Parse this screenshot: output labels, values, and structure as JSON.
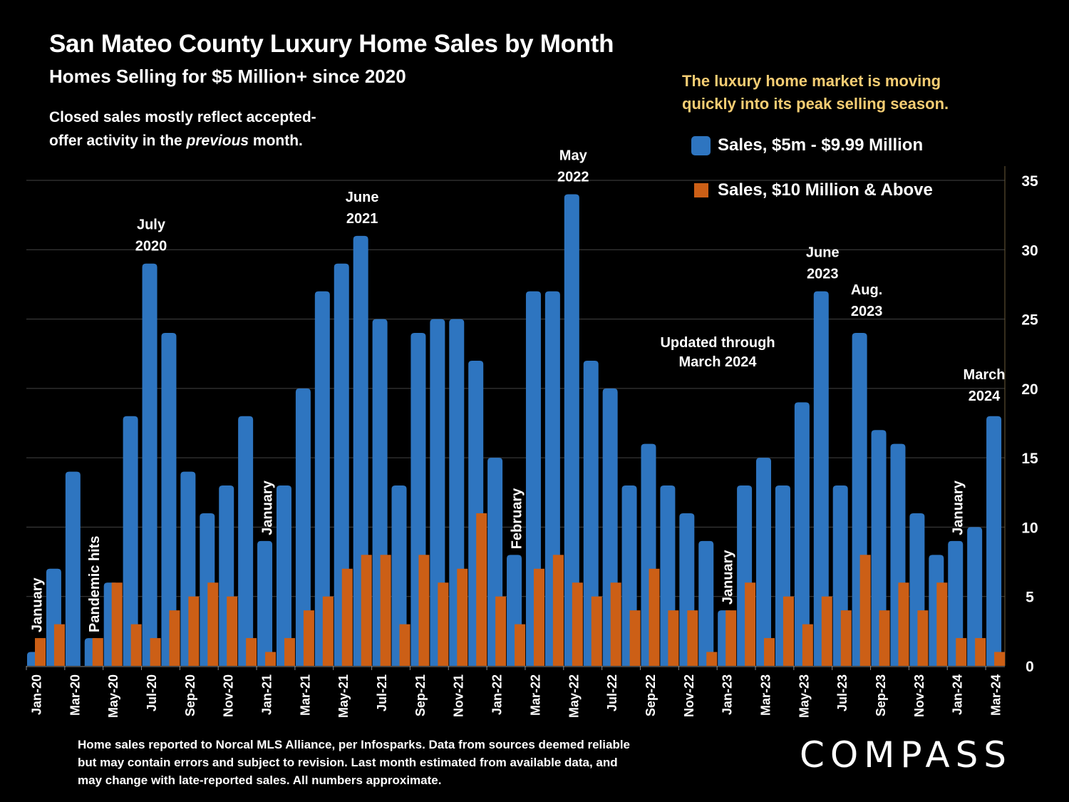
{
  "header": {
    "title": "San Mateo County Luxury Home Sales by Month",
    "subtitle": "Homes Selling for $5 Million+ since 2020",
    "note_part1": "Closed sales mostly reflect accepted-",
    "note_part2_before": "offer activity in the ",
    "note_part2_italic": "previous",
    "note_part2_after": " month.",
    "callout_line1": "The luxury home market is moving",
    "callout_line2": "quickly into its peak selling season."
  },
  "footer": {
    "source_line1": "Home sales reported to Norcal MLS Alliance, per Infosparks. Data from sources deemed reliable",
    "source_line2": "but may contain errors and subject to revision.  Last month estimated from available data, and",
    "source_line3": "may change with late-reported sales. All numbers approximate.",
    "logo": "COMPASS"
  },
  "colors": {
    "series_5m": "#2e75c0",
    "series_10m": "#cc5f16",
    "callout": "#f5cd73",
    "background": "#000000",
    "gridline": "#444444"
  },
  "chart_data": {
    "type": "bar",
    "title": "San Mateo County Luxury Home Sales by Month",
    "xlabel": "",
    "ylabel": "",
    "ylim": [
      0,
      35
    ],
    "yticks": [
      0,
      5,
      10,
      15,
      20,
      25,
      30,
      35
    ],
    "y_axis_side": "right",
    "grid": true,
    "legend_position": "top-right",
    "categories": [
      "Jan-20",
      "Feb-20",
      "Mar-20",
      "Apr-20",
      "May-20",
      "Jun-20",
      "Jul-20",
      "Aug-20",
      "Sep-20",
      "Oct-20",
      "Nov-20",
      "Dec-20",
      "Jan-21",
      "Feb-21",
      "Mar-21",
      "Apr-21",
      "May-21",
      "Jun-21",
      "Jul-21",
      "Aug-21",
      "Sep-21",
      "Oct-21",
      "Nov-21",
      "Dec-21",
      "Jan-22",
      "Feb-22",
      "Mar-22",
      "Apr-22",
      "May-22",
      "Jun-22",
      "Jul-22",
      "Aug-22",
      "Sep-22",
      "Oct-22",
      "Nov-22",
      "Dec-22",
      "Jan-23",
      "Feb-23",
      "Mar-23",
      "Apr-23",
      "May-23",
      "Jun-23",
      "Jul-23",
      "Aug-23",
      "Sep-23",
      "Oct-23",
      "Nov-23",
      "Dec-23",
      "Jan-24",
      "Feb-24",
      "Mar-24"
    ],
    "tick_labels_every": 2,
    "series": [
      {
        "name": "Sales, $5m - $9.99 Million",
        "values": [
          1,
          7,
          14,
          2,
          6,
          18,
          29,
          24,
          14,
          11,
          13,
          18,
          9,
          13,
          20,
          27,
          29,
          31,
          25,
          13,
          24,
          25,
          25,
          22,
          15,
          8,
          27,
          27,
          34,
          22,
          20,
          13,
          16,
          13,
          11,
          9,
          4,
          13,
          15,
          13,
          19,
          27,
          13,
          24,
          17,
          16,
          11,
          8,
          9,
          10,
          18
        ]
      },
      {
        "name": "Sales, $10 Million & Above",
        "values": [
          2,
          3,
          0,
          2,
          6,
          3,
          2,
          4,
          5,
          6,
          5,
          2,
          1,
          2,
          4,
          5,
          7,
          8,
          8,
          3,
          8,
          6,
          7,
          11,
          5,
          3,
          7,
          8,
          6,
          5,
          6,
          4,
          7,
          4,
          4,
          1,
          4,
          6,
          2,
          5,
          3,
          5,
          4,
          8,
          4,
          6,
          4,
          6,
          2,
          2,
          1
        ]
      }
    ],
    "annotations": [
      {
        "text": "January",
        "month_index": 0,
        "orientation": "vertical"
      },
      {
        "text": "Pandemic hits",
        "month_index": 3,
        "orientation": "vertical"
      },
      {
        "text": "July|2020",
        "month_index": 6,
        "orientation": "horizontal"
      },
      {
        "text": "January",
        "month_index": 12,
        "orientation": "vertical"
      },
      {
        "text": "June|2021",
        "month_index": 17,
        "orientation": "horizontal"
      },
      {
        "text": "February",
        "month_index": 25,
        "orientation": "vertical"
      },
      {
        "text": "May|2022",
        "month_index": 28,
        "orientation": "horizontal"
      },
      {
        "text": "Updated through|March 2024",
        "month_index": 35,
        "orientation": "horizontal"
      },
      {
        "text": "January",
        "month_index": 36,
        "orientation": "vertical"
      },
      {
        "text": "June|2023",
        "month_index": 41,
        "orientation": "horizontal"
      },
      {
        "text": "Aug.|2023",
        "month_index": 43,
        "orientation": "horizontal"
      },
      {
        "text": "January",
        "month_index": 48,
        "orientation": "vertical"
      },
      {
        "text": "March|2024",
        "month_index": 50,
        "orientation": "horizontal"
      }
    ]
  }
}
